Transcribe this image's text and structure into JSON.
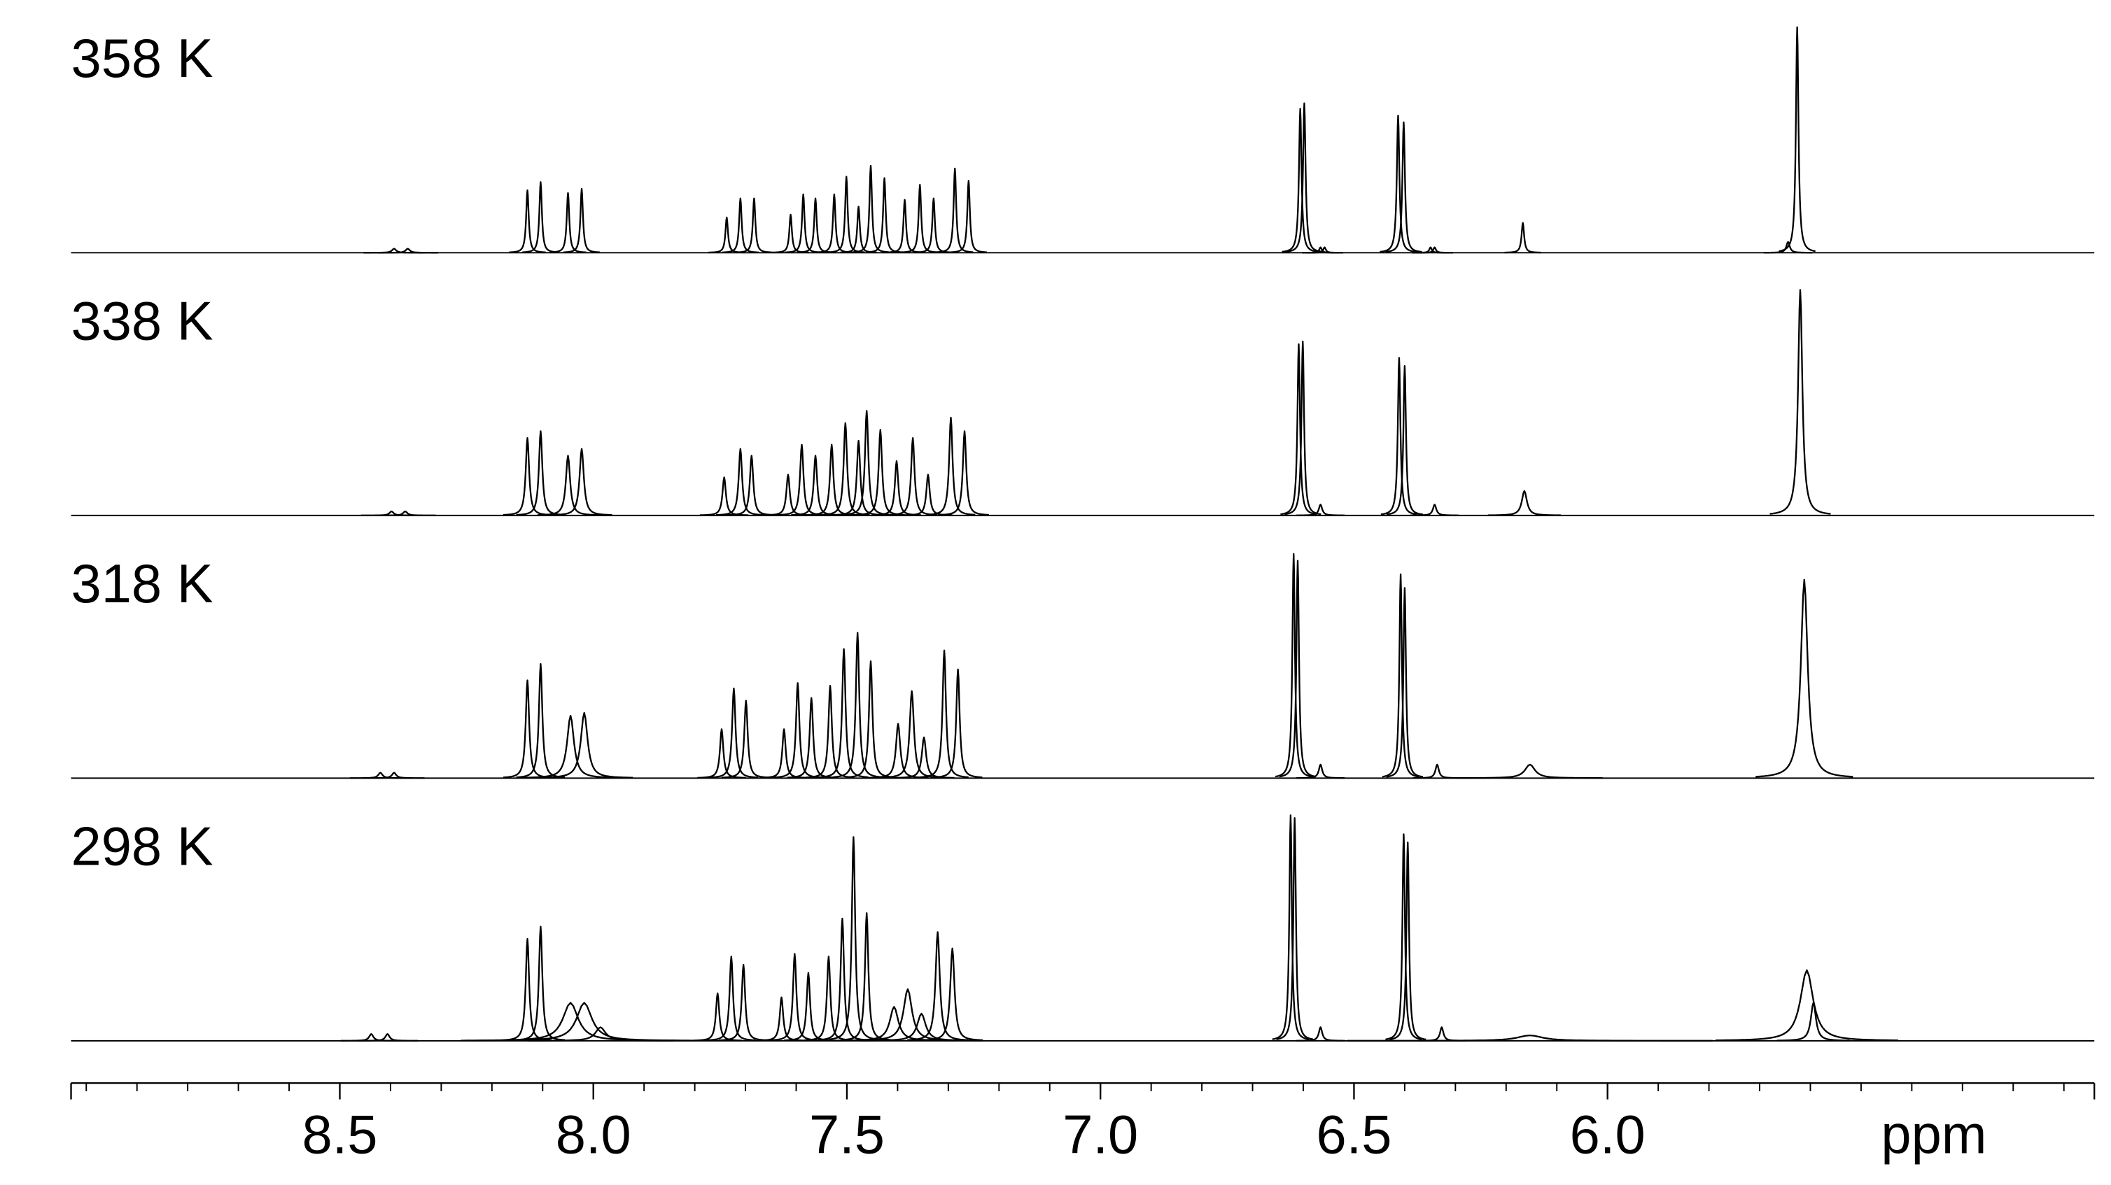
{
  "chart_data": {
    "type": "spectrum",
    "xlabel": "ppm",
    "xlim": [
      9.03,
      5.04
    ],
    "xticks": [
      8.5,
      {
        "value": 8,
        "label": "8.0"
      },
      7.5,
      {
        "value": 7,
        "label": "7.0"
      },
      6.5,
      {
        "value": 6,
        "label": "6.0"
      }
    ],
    "xminorticks": [
      9.0,
      8.9,
      8.8,
      8.7,
      8.6,
      8.5,
      8.4,
      8.3,
      8.2,
      8.1,
      8.0,
      7.9,
      7.8,
      7.7,
      7.6,
      7.5,
      7.4,
      7.3,
      7.2,
      7.1,
      7.0,
      6.9,
      6.8,
      6.7,
      6.6,
      6.5,
      6.4,
      6.3,
      6.2,
      6.1,
      6.0,
      5.9,
      5.8,
      5.7,
      5.6,
      5.5,
      5.4,
      5.3,
      5.2,
      5.1
    ],
    "ylim": [
      0,
      180
    ],
    "series": [
      {
        "name": "358 K",
        "color": "#000000",
        "ppm": [
          8.393,
          8.366,
          8.13,
          8.104,
          8.05,
          8.023,
          7.737,
          7.71,
          7.683,
          7.611,
          7.586,
          7.562,
          7.525,
          7.501,
          7.477,
          7.453,
          7.426,
          7.386,
          7.356,
          7.329,
          7.287,
          7.26,
          6.606,
          6.598,
          6.566,
          6.558,
          6.413,
          6.402,
          6.349,
          6.341,
          6.167,
          5.644,
          5.626
        ],
        "values": [
          3,
          3,
          46,
          52,
          44,
          47,
          26,
          40,
          40,
          28,
          43,
          40,
          43,
          56,
          34,
          64,
          55,
          39,
          50,
          40,
          62,
          53,
          106,
          110,
          4,
          4,
          101,
          96,
          4,
          4,
          22,
          8,
          166
        ],
        "widths": [
          0.005,
          0.005,
          0.003,
          0.003,
          0.003,
          0.003,
          0.003,
          0.003,
          0.003,
          0.003,
          0.003,
          0.003,
          0.003,
          0.003,
          0.003,
          0.003,
          0.003,
          0.003,
          0.003,
          0.003,
          0.003,
          0.003,
          0.003,
          0.003,
          0.003,
          0.003,
          0.003,
          0.003,
          0.003,
          0.003,
          0.003,
          0.004,
          0.003
        ]
      },
      {
        "name": "338 K",
        "color": "#000000",
        "ppm": [
          8.398,
          8.371,
          8.13,
          8.104,
          8.05,
          8.023,
          7.742,
          7.71,
          7.688,
          7.616,
          7.589,
          7.562,
          7.53,
          7.503,
          7.477,
          7.461,
          7.434,
          7.402,
          7.37,
          7.34,
          7.295,
          7.268,
          6.609,
          6.601,
          6.566,
          6.411,
          6.4,
          6.341,
          6.164,
          5.62
        ],
        "values": [
          3,
          3,
          57,
          62,
          44,
          49,
          28,
          49,
          44,
          30,
          52,
          44,
          52,
          68,
          55,
          77,
          63,
          40,
          57,
          30,
          72,
          62,
          126,
          128,
          8,
          116,
          110,
          8,
          18,
          166
        ],
        "widths": [
          0.005,
          0.005,
          0.004,
          0.004,
          0.005,
          0.005,
          0.004,
          0.004,
          0.004,
          0.004,
          0.004,
          0.004,
          0.004,
          0.004,
          0.004,
          0.004,
          0.004,
          0.004,
          0.004,
          0.004,
          0.004,
          0.004,
          0.003,
          0.003,
          0.004,
          0.003,
          0.003,
          0.004,
          0.006,
          0.005
        ]
      },
      {
        "name": "318 K",
        "color": "#000000",
        "ppm": [
          8.42,
          8.393,
          8.13,
          8.104,
          8.045,
          8.018,
          7.747,
          7.723,
          7.699,
          7.624,
          7.597,
          7.57,
          7.533,
          7.506,
          7.479,
          7.453,
          7.399,
          7.372,
          7.348,
          7.308,
          7.281,
          6.619,
          6.611,
          6.566,
          6.408,
          6.4,
          6.336,
          6.153,
          5.612
        ],
        "values": [
          4,
          4,
          72,
          84,
          46,
          48,
          36,
          66,
          57,
          36,
          70,
          59,
          68,
          95,
          107,
          86,
          40,
          64,
          30,
          94,
          80,
          165,
          160,
          10,
          150,
          140,
          10,
          10,
          146
        ],
        "widths": [
          0.005,
          0.005,
          0.004,
          0.004,
          0.008,
          0.008,
          0.004,
          0.004,
          0.004,
          0.004,
          0.004,
          0.004,
          0.004,
          0.004,
          0.004,
          0.004,
          0.005,
          0.005,
          0.005,
          0.004,
          0.004,
          0.003,
          0.003,
          0.004,
          0.003,
          0.003,
          0.004,
          0.012,
          0.008
        ]
      },
      {
        "name": "298 K",
        "color": "#000000",
        "ppm": [
          8.438,
          8.406,
          8.13,
          8.104,
          8.045,
          8.018,
          7.986,
          7.755,
          7.728,
          7.704,
          7.629,
          7.603,
          7.576,
          7.536,
          7.509,
          7.487,
          7.461,
          7.407,
          7.38,
          7.353,
          7.321,
          7.292,
          6.625,
          6.617,
          6.566,
          6.402,
          6.394,
          6.327,
          6.153,
          5.607,
          5.594
        ],
        "values": [
          5,
          5,
          75,
          84,
          28,
          28,
          10,
          35,
          62,
          56,
          32,
          64,
          50,
          62,
          90,
          150,
          94,
          25,
          38,
          20,
          80,
          68,
          166,
          164,
          10,
          152,
          146,
          10,
          4,
          52,
          28
        ],
        "widths": [
          0.005,
          0.005,
          0.004,
          0.004,
          0.018,
          0.018,
          0.012,
          0.004,
          0.004,
          0.004,
          0.004,
          0.004,
          0.004,
          0.004,
          0.004,
          0.004,
          0.004,
          0.01,
          0.01,
          0.01,
          0.005,
          0.005,
          0.003,
          0.003,
          0.004,
          0.003,
          0.003,
          0.004,
          0.03,
          0.015,
          0.006
        ]
      }
    ]
  }
}
